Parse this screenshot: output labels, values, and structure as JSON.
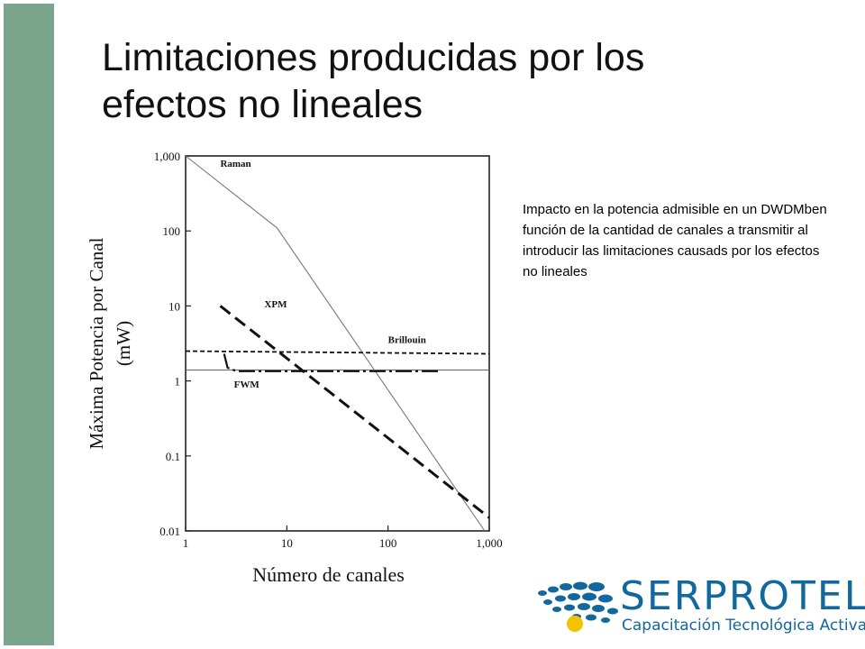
{
  "slide": {
    "title_line1": "Limitaciones producidas por los",
    "title_line2": "efectos no lineales",
    "caption": "Impacto en la potencia admisible en un DWDMben función de la cantidad de canales a transmitir al introducir las limitaciones causads por los  efectos no lineales",
    "accent_color": "#7aa58c"
  },
  "logo": {
    "word": "SERPROTEL",
    "tagline": "Capacitación Tecnológica Activa",
    "brand_color": "#12689e",
    "dot_color": "#f2c300"
  },
  "chart_data": {
    "type": "line",
    "ylabel_line1": "Máxima Potencia por Canal",
    "ylabel_line2": "(mW)",
    "xlabel": "Número de canales",
    "x_scale": "log",
    "y_scale": "log",
    "xlim": [
      1,
      1000
    ],
    "ylim": [
      0.01,
      1000
    ],
    "x_ticks": [
      {
        "value": 1,
        "label": "1"
      },
      {
        "value": 10,
        "label": "10"
      },
      {
        "value": 100,
        "label": "100"
      },
      {
        "value": 1000,
        "label": "1,000"
      }
    ],
    "y_ticks": [
      {
        "value": 1000,
        "label": "1,000"
      },
      {
        "value": 100,
        "label": "100"
      },
      {
        "value": 10,
        "label": "10"
      },
      {
        "value": 1,
        "label": "1"
      },
      {
        "value": 0.1,
        "label": "0.1"
      },
      {
        "value": 0.01,
        "label": "0.01"
      }
    ],
    "series": [
      {
        "name": "Raman",
        "style": "solid",
        "points": [
          [
            1,
            1000
          ],
          [
            8,
            110
          ],
          [
            900,
            0.01
          ]
        ]
      },
      {
        "name": "XPM",
        "style": "dashed",
        "points": [
          [
            2.2,
            10
          ],
          [
            1000,
            0.015
          ]
        ]
      },
      {
        "name": "Brillouin",
        "style": "dotted",
        "points": [
          [
            1,
            2.5
          ],
          [
            1000,
            2.3
          ]
        ]
      },
      {
        "name": "FWM",
        "style": "dashdot",
        "points": [
          [
            2.4,
            2.3
          ],
          [
            2.6,
            1.5
          ],
          [
            3.2,
            1.35
          ],
          [
            330,
            1.35
          ]
        ]
      }
    ],
    "reference_line": {
      "y": 1.4
    }
  }
}
